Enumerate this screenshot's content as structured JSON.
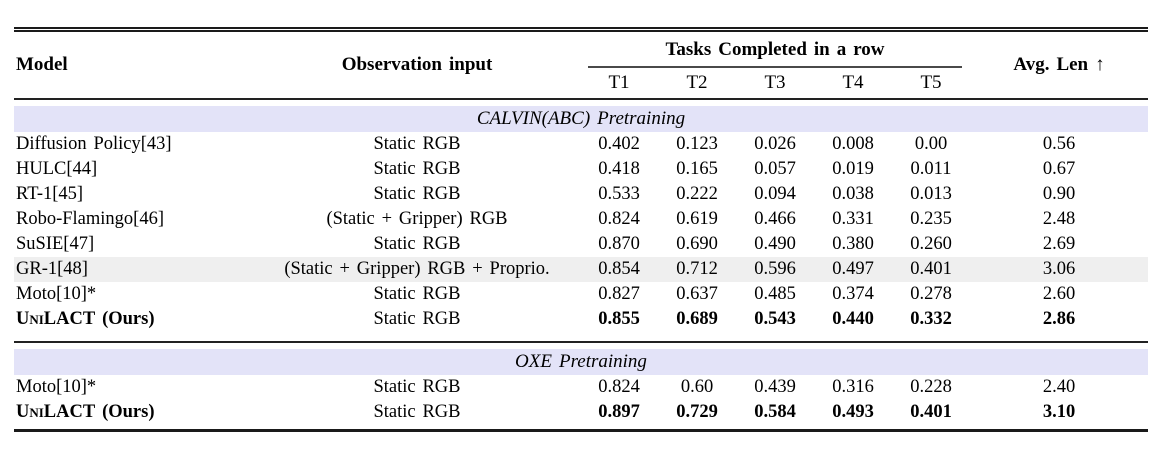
{
  "table": {
    "headers": {
      "model": "Model",
      "observation": "Observation input",
      "tasks_group": "Tasks Completed in a row",
      "subcolumns": [
        "T1",
        "T2",
        "T3",
        "T4",
        "T5"
      ],
      "avg": "Avg. Len ↑"
    },
    "sections": [
      {
        "title": "CALVIN(ABC) Pretraining",
        "rows": [
          {
            "model": "Diffusion Policy[43]",
            "suffix": "",
            "obs": "Static RGB",
            "values": [
              "0.402",
              "0.123",
              "0.026",
              "0.008",
              "0.00"
            ],
            "avg": "0.56",
            "bold": false,
            "shaded": false,
            "smallcaps": false
          },
          {
            "model": "HULC[44]",
            "suffix": "",
            "obs": "Static RGB",
            "values": [
              "0.418",
              "0.165",
              "0.057",
              "0.019",
              "0.011"
            ],
            "avg": "0.67",
            "bold": false,
            "shaded": false,
            "smallcaps": false
          },
          {
            "model": "RT-1[45]",
            "suffix": "",
            "obs": "Static RGB",
            "values": [
              "0.533",
              "0.222",
              "0.094",
              "0.038",
              "0.013"
            ],
            "avg": "0.90",
            "bold": false,
            "shaded": false,
            "smallcaps": false
          },
          {
            "model": "Robo-Flamingo[46]",
            "suffix": "",
            "obs": "(Static + Gripper) RGB",
            "values": [
              "0.824",
              "0.619",
              "0.466",
              "0.331",
              "0.235"
            ],
            "avg": "2.48",
            "bold": false,
            "shaded": false,
            "smallcaps": false
          },
          {
            "model": "SuSIE[47]",
            "suffix": "",
            "obs": "Static RGB",
            "values": [
              "0.870",
              "0.690",
              "0.490",
              "0.380",
              "0.260"
            ],
            "avg": "2.69",
            "bold": false,
            "shaded": false,
            "smallcaps": false
          },
          {
            "model": "GR-1[48]",
            "suffix": "",
            "obs": "(Static + Gripper) RGB + Proprio.",
            "values": [
              "0.854",
              "0.712",
              "0.596",
              "0.497",
              "0.401"
            ],
            "avg": "3.06",
            "bold": false,
            "shaded": true,
            "smallcaps": false
          },
          {
            "model": "Moto[10]*",
            "suffix": "",
            "obs": "Static RGB",
            "values": [
              "0.827",
              "0.637",
              "0.485",
              "0.374",
              "0.278"
            ],
            "avg": "2.60",
            "bold": false,
            "shaded": false,
            "smallcaps": false
          },
          {
            "model": "UniLACT",
            "suffix": " (Ours)",
            "obs": "Static RGB",
            "values": [
              "0.855",
              "0.689",
              "0.543",
              "0.440",
              "0.332"
            ],
            "avg": "2.86",
            "bold": true,
            "shaded": false,
            "smallcaps": true
          }
        ]
      },
      {
        "title": "OXE Pretraining",
        "rows": [
          {
            "model": "Moto[10]*",
            "suffix": "",
            "obs": "Static RGB",
            "values": [
              "0.824",
              "0.60",
              "0.439",
              "0.316",
              "0.228"
            ],
            "avg": "2.40",
            "bold": false,
            "shaded": false,
            "smallcaps": false
          },
          {
            "model": "UniLACT",
            "suffix": " (Ours)",
            "obs": "Static RGB",
            "values": [
              "0.897",
              "0.729",
              "0.584",
              "0.493",
              "0.401"
            ],
            "avg": "3.10",
            "bold": true,
            "shaded": false,
            "smallcaps": true
          }
        ]
      }
    ]
  },
  "colors": {
    "section_band_bg": "#e3e3f8",
    "highlight_row_bg": "#efefef",
    "rule_color": "#1a1a1a"
  }
}
